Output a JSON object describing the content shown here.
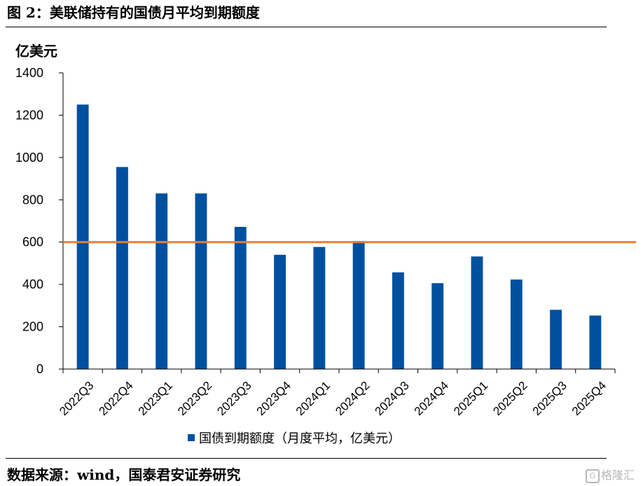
{
  "title": "图 2：美联储持有的国债月平均到期额度",
  "source": "数据来源：wind，国泰君安证券研究",
  "watermark": {
    "text": "格隆汇",
    "icon": "gelonghui-logo-icon"
  },
  "colors": {
    "bar": "#0050a0",
    "reference_line": "#ed7d31",
    "axis": "#000000"
  },
  "chart_data": {
    "type": "bar",
    "title": "",
    "unit_label": "亿美元",
    "xlabel": "",
    "ylabel": "亿美元",
    "ylim": [
      0,
      1400
    ],
    "yticks": [
      0,
      200,
      400,
      600,
      800,
      1000,
      1200,
      1400
    ],
    "grid": false,
    "legend_position": "bottom",
    "categories": [
      "2022Q3",
      "2022Q4",
      "2023Q1",
      "2023Q2",
      "2023Q3",
      "2023Q4",
      "2024Q1",
      "2024Q2",
      "2024Q3",
      "2024Q4",
      "2025Q1",
      "2025Q2",
      "2025Q3",
      "2025Q4"
    ],
    "series": [
      {
        "name": "国债到期额度（月度平均，亿美元）",
        "values": [
          1250,
          955,
          830,
          830,
          672,
          540,
          577,
          605,
          457,
          406,
          532,
          423,
          280,
          253
        ]
      }
    ],
    "reference_line": {
      "value": 600
    }
  }
}
